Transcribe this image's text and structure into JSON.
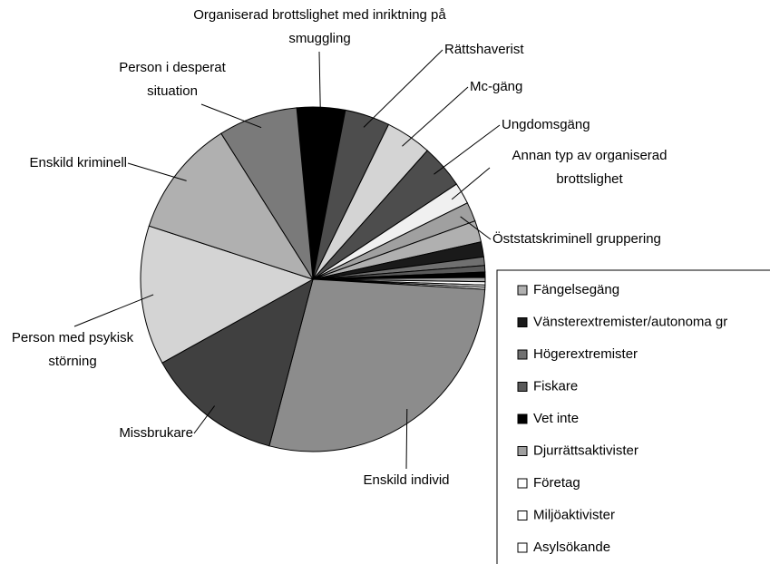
{
  "chart_data": {
    "type": "pie",
    "categories": [
      "Organiserad brottslighet med inriktning på smuggling",
      "Rättshaverist",
      "Mc-gäng",
      "Ungdomsgäng",
      "Annan typ av organiserad brottslighet",
      "Öststatskriminell gruppering",
      "Fängelsegäng",
      "Vänsterextremister/autonoma gr",
      "Högerextremister",
      "Fiskare",
      "Vet inte",
      "Djurrättsaktivister",
      "Företag",
      "Miljöaktivister",
      "Asylsökande",
      "Enskild individ",
      "Missbrukare",
      "Person med psykisk störning",
      "Enskild kriminell",
      "Person i desperat situation"
    ],
    "values": [
      4.5,
      4.2,
      4.3,
      4.1,
      2.0,
      1.8,
      2.0,
      1.4,
      0.8,
      0.6,
      0.5,
      0.4,
      0.3,
      0.2,
      0.2,
      28,
      12.8,
      13,
      11,
      7.4
    ],
    "colors": [
      "#000000",
      "#4d4d4d",
      "#d4d4d4",
      "#4d4d4d",
      "#f0f0f0",
      "#a0a0a0",
      "#b0b0b0",
      "#1a1a1a",
      "#707070",
      "#5a5a5a",
      "#000000",
      "#a0a0a0",
      "#ffffff",
      "#ffffff",
      "#ffffff",
      "#8c8c8c",
      "#404040",
      "#d4d4d4",
      "#b0b0b0",
      "#7a7a7a"
    ],
    "legend_categories": [
      6,
      7,
      8,
      9,
      10,
      11,
      12,
      13,
      14
    ]
  }
}
